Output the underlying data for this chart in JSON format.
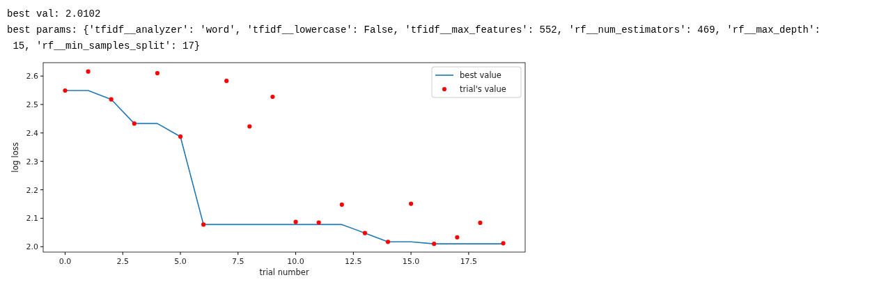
{
  "chart_data": {
    "type": "line",
    "xlabel": "trial number",
    "ylabel": "log loss",
    "annotations": [
      "best val: 2.0102",
      "best params: {'tfidf__analyzer': 'word', 'tfidf__lowercase': False, 'tfidf__max_features': 552, 'rf__num_estimators': 469, 'rf__max_depth': 15, 'rf__min_samples_split': 17}"
    ],
    "x": [
      0,
      1,
      2,
      3,
      4,
      5,
      6,
      7,
      8,
      9,
      10,
      11,
      12,
      13,
      14,
      15,
      16,
      17,
      18,
      19
    ],
    "series": [
      {
        "name": "best value",
        "color": "#1f77b4",
        "values": [
          2.549,
          2.549,
          2.518,
          2.433,
          2.433,
          2.387,
          2.078,
          2.078,
          2.078,
          2.078,
          2.078,
          2.078,
          2.078,
          2.048,
          2.017,
          2.017,
          2.01,
          2.01,
          2.01,
          2.01
        ]
      },
      {
        "name": "trial's value",
        "type": "scatter",
        "marker": "circle",
        "color": "#ff0000",
        "values": [
          2.549,
          2.616,
          2.518,
          2.433,
          2.61,
          2.387,
          2.078,
          2.583,
          2.423,
          2.527,
          2.087,
          2.085,
          2.148,
          2.048,
          2.017,
          2.151,
          2.01,
          2.033,
          2.084,
          2.012
        ]
      }
    ],
    "xlim": [
      -0.95,
      19.95
    ],
    "ylim": [
      1.981,
      2.647
    ],
    "xticks": [
      {
        "value": 0,
        "label": "0.0"
      },
      {
        "value": 2.5,
        "label": "2.5"
      },
      {
        "value": 5,
        "label": "5.0"
      },
      {
        "value": 7.5,
        "label": "7.5"
      },
      {
        "value": 10,
        "label": "10.0"
      },
      {
        "value": 12.5,
        "label": "12.5"
      },
      {
        "value": 15,
        "label": "15.0"
      },
      {
        "value": 17.5,
        "label": "17.5"
      }
    ],
    "yticks": [
      {
        "value": 2.0,
        "label": "2.0"
      },
      {
        "value": 2.1,
        "label": "2.1"
      },
      {
        "value": 2.2,
        "label": "2.2"
      },
      {
        "value": 2.3,
        "label": "2.3"
      },
      {
        "value": 2.4,
        "label": "2.4"
      },
      {
        "value": 2.5,
        "label": "2.5"
      },
      {
        "value": 2.6,
        "label": "2.6"
      }
    ],
    "legend": "top right",
    "grid": false
  }
}
